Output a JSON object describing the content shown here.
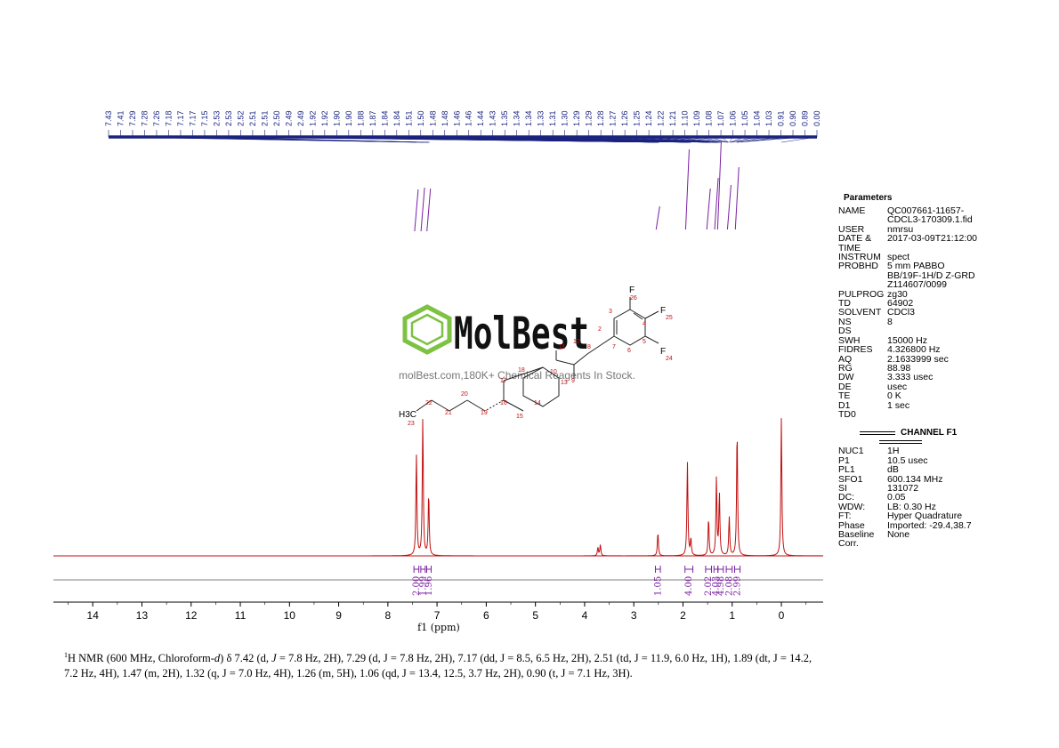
{
  "chart_data": {
    "type": "line",
    "xlabel": "f1 (ppm)",
    "x_ticks": [
      14,
      13,
      12,
      11,
      10,
      9,
      8,
      7,
      6,
      5,
      4,
      3,
      2,
      1,
      0
    ],
    "xlim": [
      14.8,
      -0.85
    ],
    "x_inverted": true,
    "peak_labels": [
      "7.43",
      "7.41",
      "7.29",
      "7.28",
      "7.26",
      "7.18",
      "7.17",
      "7.17",
      "7.15",
      "2.53",
      "2.53",
      "2.52",
      "2.51",
      "2.51",
      "2.50",
      "2.49",
      "2.49",
      "1.92",
      "1.92",
      "1.90",
      "1.90",
      "1.88",
      "1.87",
      "1.84",
      "1.84",
      "1.51",
      "1.50",
      "1.48",
      "1.48",
      "1.46",
      "1.46",
      "1.44",
      "1.43",
      "1.35",
      "1.34",
      "1.34",
      "1.33",
      "1.31",
      "1.30",
      "1.29",
      "1.29",
      "1.28",
      "1.27",
      "1.26",
      "1.25",
      "1.24",
      "1.22",
      "1.21",
      "1.10",
      "1.09",
      "1.08",
      "1.07",
      "1.06",
      "1.05",
      "1.04",
      "1.03",
      "0.91",
      "0.90",
      "0.89",
      "0.00"
    ],
    "peaks": [
      {
        "ppm": 7.42,
        "height": 0.74
      },
      {
        "ppm": 7.29,
        "height": 1.0
      },
      {
        "ppm": 7.17,
        "height": 0.45
      },
      {
        "ppm": 3.73,
        "height": 0.06
      },
      {
        "ppm": 3.68,
        "height": 0.08
      },
      {
        "ppm": 2.51,
        "height": 0.17
      },
      {
        "ppm": 1.91,
        "height": 0.68
      },
      {
        "ppm": 1.84,
        "height": 0.12
      },
      {
        "ppm": 1.48,
        "height": 0.27
      },
      {
        "ppm": 1.32,
        "height": 0.56
      },
      {
        "ppm": 1.26,
        "height": 0.45
      },
      {
        "ppm": 1.06,
        "height": 0.28
      },
      {
        "ppm": 0.9,
        "height": 0.92
      },
      {
        "ppm": 0.0,
        "height": 1.0
      }
    ],
    "integrals": [
      {
        "from": 7.47,
        "to": 7.37,
        "value": "2.00"
      },
      {
        "from": 7.33,
        "to": 7.24,
        "value": "1.99"
      },
      {
        "from": 7.21,
        "to": 7.12,
        "value": "1.96"
      },
      {
        "from": 2.56,
        "to": 2.46,
        "value": "1.05"
      },
      {
        "from": 1.96,
        "to": 1.8,
        "value": "4.00"
      },
      {
        "from": 1.54,
        "to": 1.42,
        "value": "2.02"
      },
      {
        "from": 1.37,
        "to": 1.29,
        "value": "4.03"
      },
      {
        "from": 1.29,
        "to": 1.18,
        "value": "4.98"
      },
      {
        "from": 1.12,
        "to": 1.0,
        "value": "2.08"
      },
      {
        "from": 0.95,
        "to": 0.84,
        "value": "2.99"
      }
    ],
    "colors": {
      "spectrum": "#c01010",
      "axis": "#000000",
      "label_line": "#1a237e",
      "integral": "#7b1fa2"
    }
  },
  "structure": {
    "atom_labels": [
      "F",
      "26",
      "F",
      "25",
      "F",
      "24",
      "3",
      "2",
      "4",
      "5",
      "6",
      "7",
      "8",
      "9",
      "10",
      "11",
      "12",
      "13",
      "14",
      "15",
      "16",
      "17",
      "18",
      "19",
      "20",
      "21",
      "22",
      "23"
    ],
    "methyl_label": "H3C"
  },
  "watermark": {
    "brand": "MolBest",
    "tagline": "molBest.com,180K+ Chemical Reagents In Stock."
  },
  "parameters": {
    "title": "Parameters",
    "rows": [
      {
        "k": "NAME",
        "v": "QC007661-11657-"
      },
      {
        "k": "",
        "v": "CDCL3-170309.1.fid"
      },
      {
        "k": "USER",
        "v": "nmrsu"
      },
      {
        "k": "DATE &",
        "v": "2017-03-09T21:12:00"
      },
      {
        "k": "TIME",
        "v": ""
      },
      {
        "k": "INSTRUM",
        "v": "spect"
      },
      {
        "k": "PROBHD",
        "v": "5 mm PABBO"
      },
      {
        "k": "",
        "v": "BB/19F-1H/D Z-GRD"
      },
      {
        "k": "",
        "v": "Z114607/0099"
      },
      {
        "k": "PULPROG",
        "v": "zg30"
      },
      {
        "k": "TD",
        "v": "64902"
      },
      {
        "k": "SOLVENT",
        "v": "CDCl3"
      },
      {
        "k": "NS",
        "v": "8"
      },
      {
        "k": "DS",
        "v": ""
      },
      {
        "k": "SWH",
        "v": "15000 Hz"
      },
      {
        "k": "FIDRES",
        "v": "4.326800 Hz"
      },
      {
        "k": "AQ",
        "v": "2.1633999 sec"
      },
      {
        "k": "RG",
        "v": "88.98"
      },
      {
        "k": "DW",
        "v": "3.333 usec"
      },
      {
        "k": "DE",
        "v": "usec"
      },
      {
        "k": "TE",
        "v": "0 K"
      },
      {
        "k": "D1",
        "v": "1 sec"
      },
      {
        "k": "TD0",
        "v": ""
      }
    ],
    "channel_title": "CHANNEL F1",
    "channel_rows": [
      {
        "k": "NUC1",
        "v": "1H"
      },
      {
        "k": "P1",
        "v": "10.5 usec"
      },
      {
        "k": "PL1",
        "v": "dB"
      },
      {
        "k": "SFO1",
        "v": "600.134 MHz"
      },
      {
        "k": "SI",
        "v": "131072"
      },
      {
        "k": "DC:",
        "v": "0.05"
      },
      {
        "k": "WDW:",
        "v": "LB: 0.30 Hz"
      },
      {
        "k": "FT:",
        "v": "Hyper Quadrature"
      },
      {
        "k": "Phase",
        "v": "Imported: -29.4,38.7"
      },
      {
        "k": "Baseline",
        "v": "None"
      },
      {
        "k": "Corr.",
        "v": ""
      }
    ]
  },
  "caption": {
    "sup": "1",
    "line1_a": "H NMR (600 MHz, Chloroform-",
    "line1_b": "d",
    "line1_c": ") δ 7.42 (d, ",
    "J": "J",
    "rest": " = 7.8 Hz, 2H), 7.29 (d, J = 7.8 Hz, 2H), 7.17 (dd, J = 8.5, 6.5 Hz, 2H), 2.51 (td, J = 11.9, 6.0 Hz, 1H), 1.89 (dt, J = 14.2, 7.2 Hz, 4H), 1.47 (m, 2H), 1.32 (q, J = 7.0 Hz, 4H), 1.26 (m, 5H), 1.06 (qd, J = 13.4, 12.5, 3.7 Hz, 2H), 0.90 (t, J = 7.1 Hz, 3H)."
  }
}
